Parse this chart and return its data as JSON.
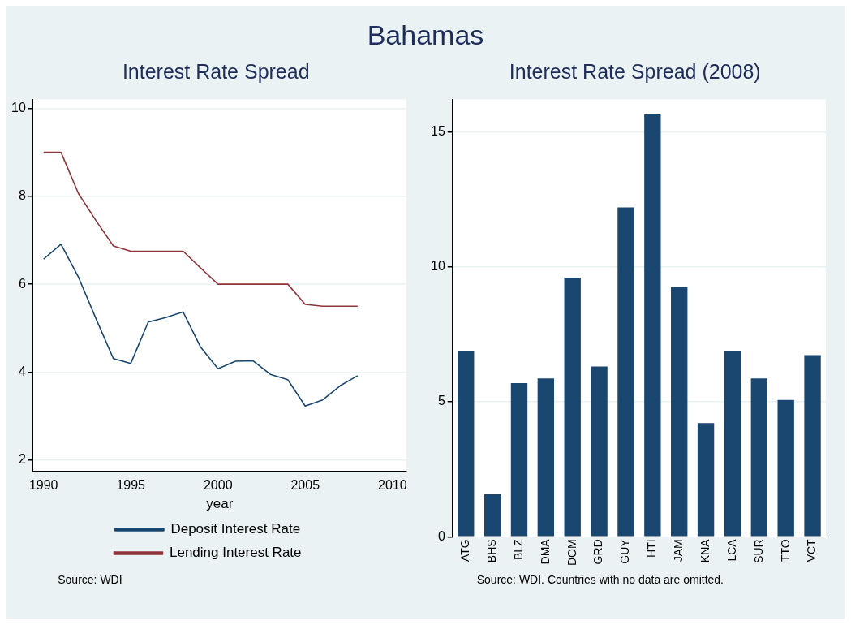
{
  "chart_data": [
    {
      "type": "line",
      "title": "Bahamas",
      "subtitle": "Interest Rate Spread",
      "xlabel": "year",
      "x": [
        1990,
        1991,
        1992,
        1993,
        1994,
        1995,
        1996,
        1997,
        1998,
        1999,
        2000,
        2001,
        2002,
        2003,
        2004,
        2005,
        2006,
        2007,
        2008
      ],
      "series": [
        {
          "name": "Deposit Interest Rate",
          "color": "#1a476f",
          "values": [
            6.57,
            6.91,
            6.16,
            5.22,
            4.31,
            4.2,
            5.14,
            5.24,
            5.37,
            4.57,
            4.08,
            4.25,
            4.26,
            3.95,
            3.83,
            3.23,
            3.37,
            3.69,
            3.92
          ]
        },
        {
          "name": "Lending Interest Rate",
          "color": "#90353b",
          "values": [
            9.0,
            9.0,
            8.06,
            7.45,
            6.87,
            6.75,
            6.75,
            6.75,
            6.75,
            6.37,
            6.0,
            6.0,
            6.0,
            6.0,
            6.0,
            5.54,
            5.5,
            5.5,
            5.5
          ]
        }
      ],
      "xlim": [
        1989.4,
        2010.8
      ],
      "xticks": [
        1990,
        1995,
        2000,
        2005,
        2010
      ],
      "ylim": [
        1.75,
        10.2
      ],
      "yticks": [
        2,
        4,
        6,
        8,
        10
      ],
      "grid": "y",
      "legend": "bottom",
      "annotations": [
        "Source: WDI"
      ]
    },
    {
      "type": "bar",
      "title": "Interest Rate Spread (2008)",
      "categories": [
        "ATG",
        "BHS",
        "BLZ",
        "DMA",
        "DOM",
        "GRD",
        "GUY",
        "HTI",
        "JAM",
        "KNA",
        "LCA",
        "SUR",
        "TTO",
        "VCT"
      ],
      "values": [
        6.9,
        1.58,
        5.69,
        5.87,
        9.6,
        6.31,
        12.2,
        15.65,
        9.26,
        4.21,
        6.9,
        5.87,
        5.07,
        6.73
      ],
      "color": "#1a476f",
      "ylim": [
        0,
        16.2
      ],
      "yticks": [
        0,
        5,
        10,
        15
      ],
      "grid": "y",
      "annotations": [
        "Source: WDI. Countries with no data are omitted."
      ]
    }
  ]
}
